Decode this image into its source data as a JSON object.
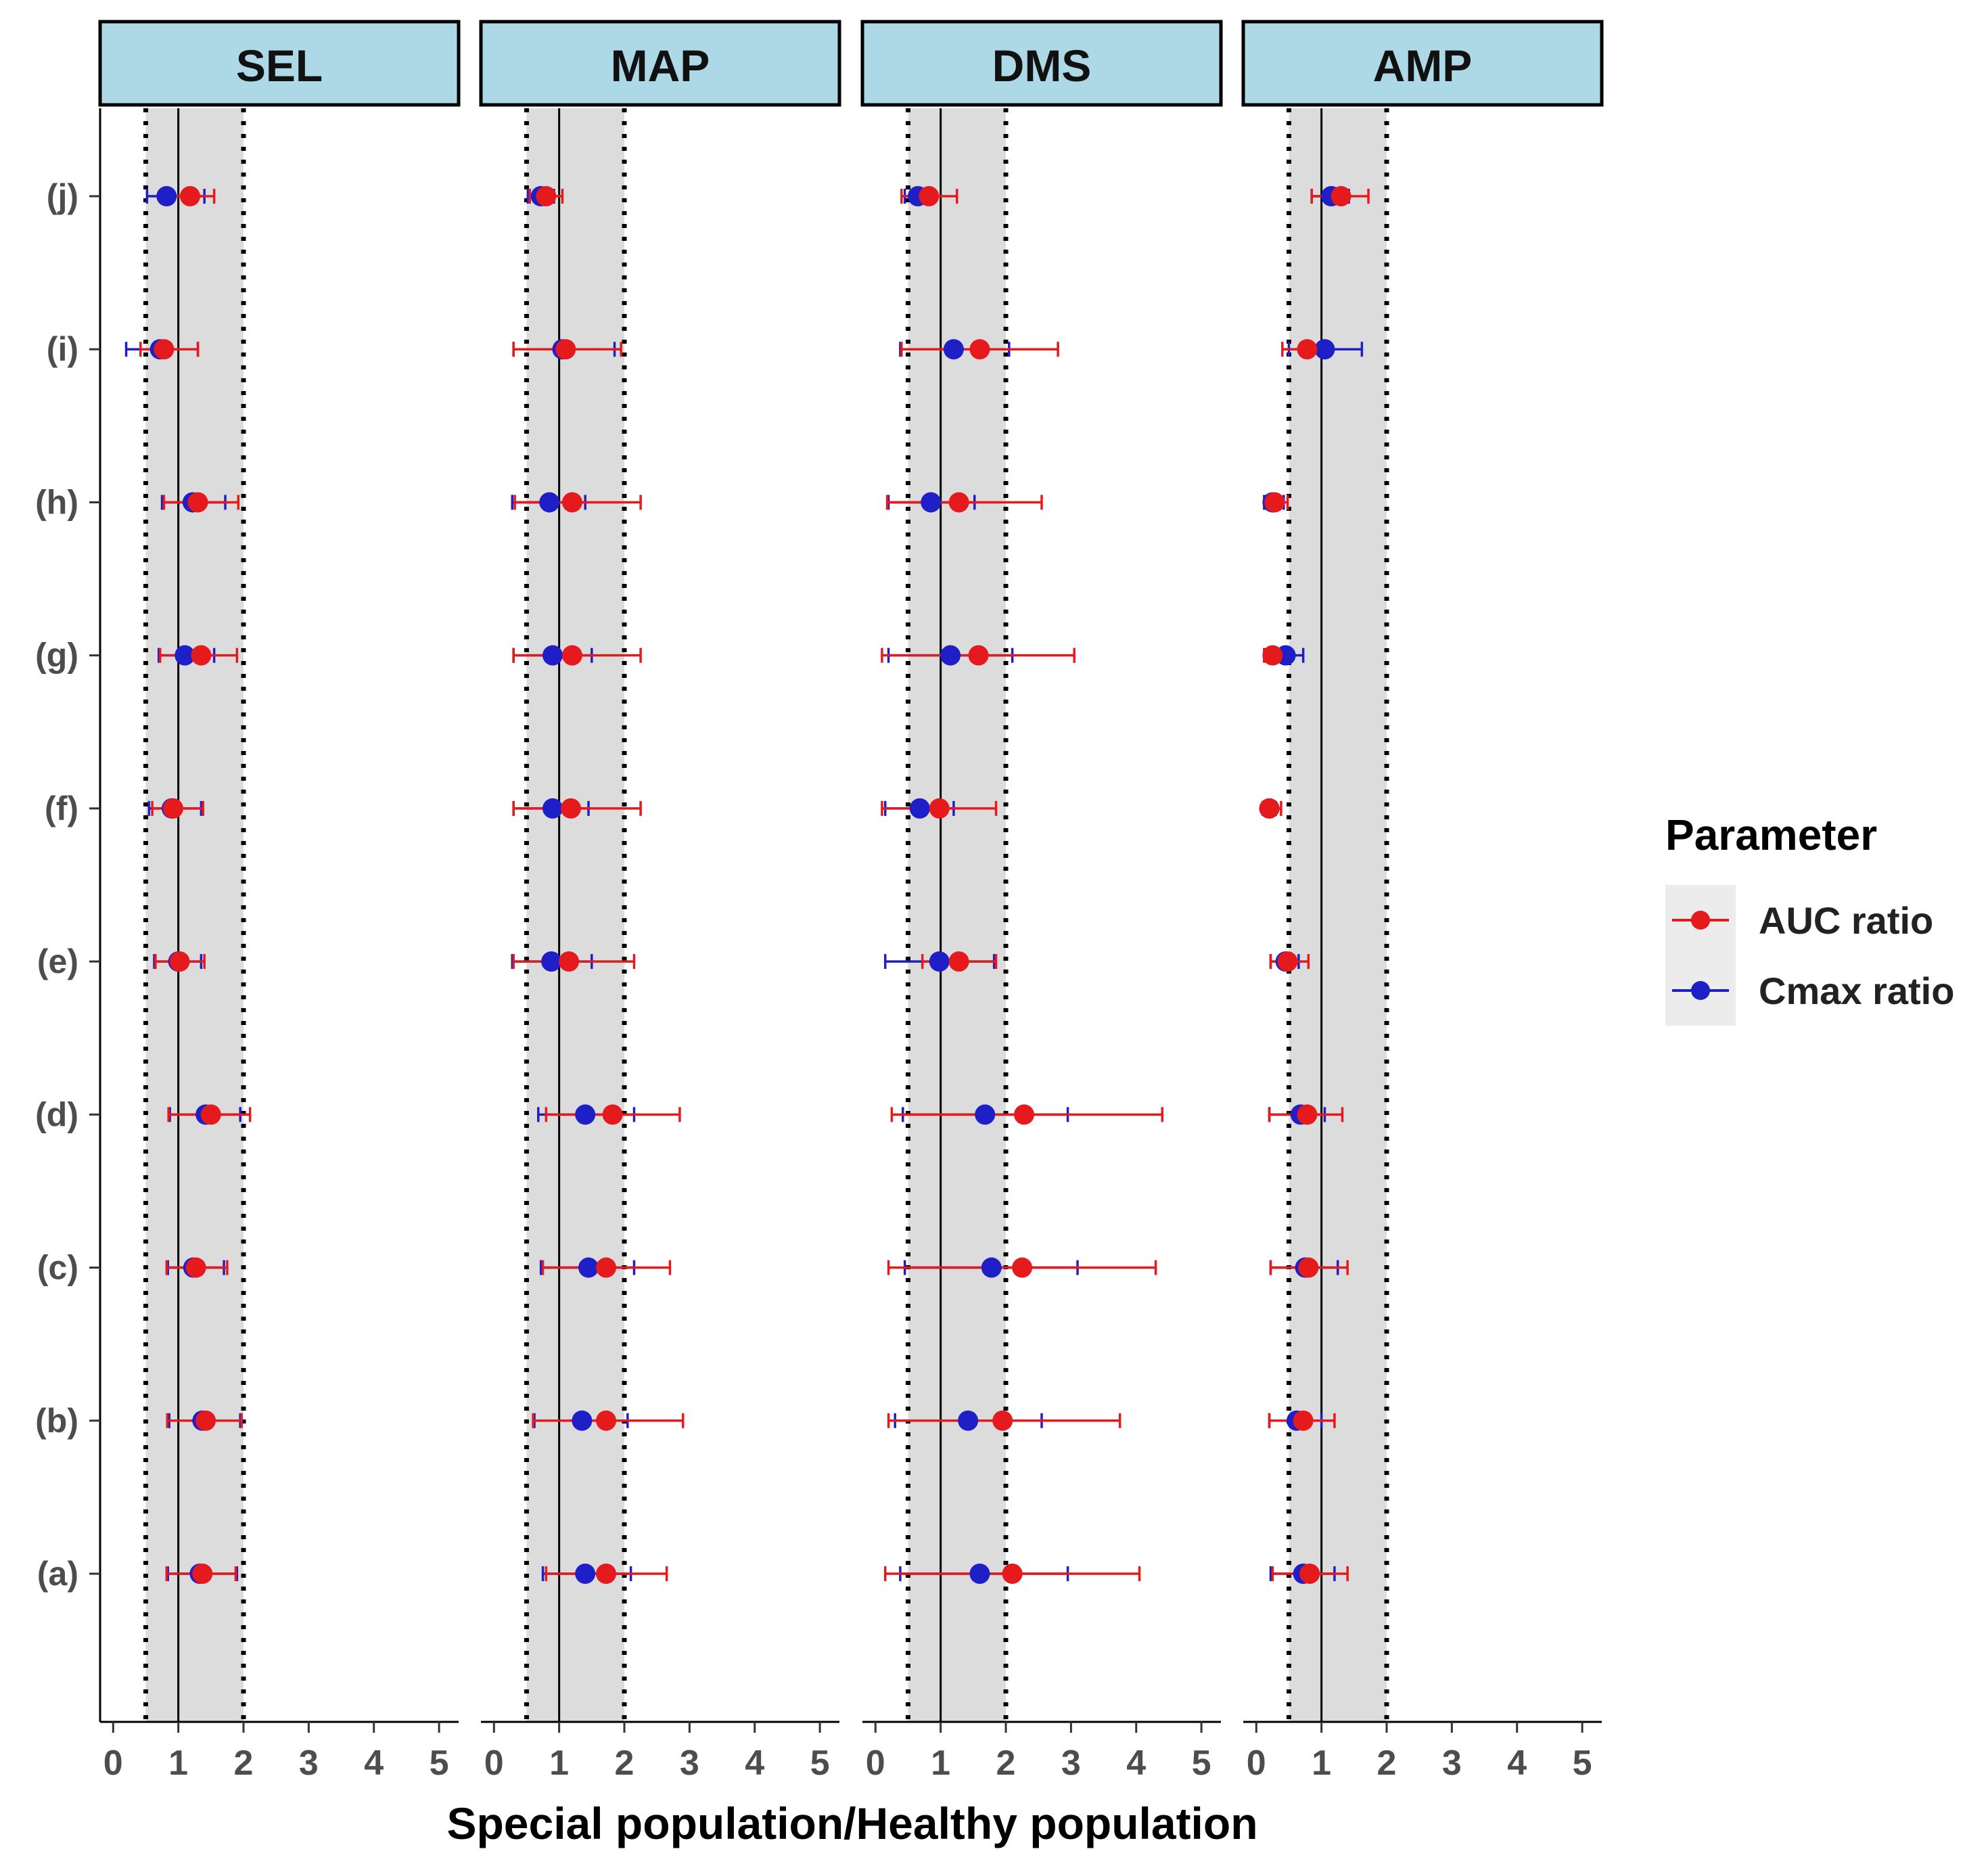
{
  "chart_data": {
    "type": "forest",
    "xlabel": "Special population/Healthy population",
    "ylabel": "",
    "xlim": [
      -0.2,
      5.3
    ],
    "xticks": [
      0,
      1,
      2,
      3,
      4,
      5
    ],
    "xtick_labels": [
      "0",
      "1",
      "2",
      "3",
      "4",
      "5"
    ],
    "reference_line": 1,
    "limit_lines": [
      0.5,
      2
    ],
    "shaded_range": [
      0.5,
      2
    ],
    "categories": [
      "(a)",
      "(b)",
      "(c)",
      "(d)",
      "(e)",
      "(f)",
      "(g)",
      "(h)",
      "(i)",
      "(j)"
    ],
    "legend": {
      "title": "Parameter",
      "entries": [
        {
          "name": "AUC ratio",
          "color": "#e41a1c"
        },
        {
          "name": "Cmax ratio",
          "color": "#1f1fc8"
        }
      ]
    },
    "panels": [
      {
        "title": "SEL",
        "series": [
          {
            "name": "AUC ratio",
            "color": "#e41a1c",
            "points": [
              [
                1.37,
                0.82,
                1.88
              ],
              [
                1.42,
                0.83,
                1.97
              ],
              [
                1.27,
                0.82,
                1.75
              ],
              [
                1.5,
                0.85,
                2.1
              ],
              [
                1.02,
                0.65,
                1.4
              ],
              [
                0.92,
                0.6,
                1.38
              ],
              [
                1.35,
                0.72,
                1.9
              ],
              [
                1.3,
                0.78,
                1.92
              ],
              [
                0.78,
                0.42,
                1.3
              ],
              [
                1.18,
                0.75,
                1.55
              ]
            ]
          },
          {
            "name": "Cmax ratio",
            "color": "#1f1fc8",
            "points": [
              [
                1.33,
                0.84,
                1.9
              ],
              [
                1.37,
                0.86,
                1.95
              ],
              [
                1.23,
                0.84,
                1.7
              ],
              [
                1.42,
                0.87,
                1.95
              ],
              [
                1.0,
                0.63,
                1.35
              ],
              [
                0.9,
                0.55,
                1.35
              ],
              [
                1.1,
                0.7,
                1.55
              ],
              [
                1.22,
                0.75,
                1.72
              ],
              [
                0.72,
                0.2,
                1.3
              ],
              [
                0.82,
                0.52,
                1.4
              ]
            ]
          }
        ]
      },
      {
        "title": "MAP",
        "series": [
          {
            "name": "AUC ratio",
            "color": "#e41a1c",
            "points": [
              [
                1.72,
                0.8,
                2.65
              ],
              [
                1.72,
                0.6,
                2.9
              ],
              [
                1.72,
                0.75,
                2.7
              ],
              [
                1.82,
                0.8,
                2.85
              ],
              [
                1.15,
                0.3,
                2.15
              ],
              [
                1.18,
                0.3,
                2.25
              ],
              [
                1.2,
                0.3,
                2.25
              ],
              [
                1.2,
                0.32,
                2.25
              ],
              [
                1.1,
                0.3,
                1.95
              ],
              [
                0.8,
                0.55,
                1.05
              ]
            ]
          },
          {
            "name": "Cmax ratio",
            "color": "#1f1fc8",
            "points": [
              [
                1.4,
                0.75,
                2.1
              ],
              [
                1.35,
                0.62,
                2.05
              ],
              [
                1.45,
                0.72,
                2.15
              ],
              [
                1.4,
                0.68,
                2.15
              ],
              [
                0.88,
                0.28,
                1.5
              ],
              [
                0.9,
                0.3,
                1.45
              ],
              [
                0.9,
                0.3,
                1.5
              ],
              [
                0.85,
                0.28,
                1.4
              ],
              [
                1.05,
                0.3,
                1.85
              ],
              [
                0.72,
                0.52,
                0.92
              ]
            ]
          }
        ]
      },
      {
        "title": "DMS",
        "series": [
          {
            "name": "AUC ratio",
            "color": "#e41a1c",
            "points": [
              [
                2.1,
                0.15,
                4.05
              ],
              [
                1.95,
                0.2,
                3.75
              ],
              [
                2.25,
                0.2,
                4.3
              ],
              [
                2.28,
                0.25,
                4.4
              ],
              [
                1.28,
                0.72,
                1.85
              ],
              [
                0.98,
                0.1,
                1.85
              ],
              [
                1.58,
                0.1,
                3.05
              ],
              [
                1.28,
                0.18,
                2.55
              ],
              [
                1.6,
                0.4,
                2.8
              ],
              [
                0.82,
                0.4,
                1.25
              ]
            ]
          },
          {
            "name": "Cmax ratio",
            "color": "#1f1fc8",
            "points": [
              [
                1.6,
                0.38,
                2.95
              ],
              [
                1.42,
                0.3,
                2.55
              ],
              [
                1.78,
                0.45,
                3.1
              ],
              [
                1.68,
                0.42,
                2.95
              ],
              [
                0.98,
                0.15,
                1.82
              ],
              [
                0.68,
                0.15,
                1.2
              ],
              [
                1.15,
                0.2,
                2.1
              ],
              [
                0.85,
                0.2,
                1.52
              ],
              [
                1.2,
                0.38,
                2.05
              ],
              [
                0.65,
                0.45,
                0.85
              ]
            ]
          }
        ]
      },
      {
        "title": "AMP",
        "series": [
          {
            "name": "AUC ratio",
            "color": "#e41a1c",
            "points": [
              [
                0.82,
                0.25,
                1.4
              ],
              [
                0.72,
                0.2,
                1.2
              ],
              [
                0.8,
                0.22,
                1.4
              ],
              [
                0.78,
                0.2,
                1.32
              ],
              [
                0.48,
                0.22,
                0.8
              ],
              [
                0.2,
                0.1,
                0.38
              ],
              [
                0.25,
                0.12,
                0.45
              ],
              [
                0.28,
                0.15,
                0.48
              ],
              [
                0.78,
                0.4,
                1.12
              ],
              [
                1.3,
                0.85,
                1.72
              ]
            ]
          },
          {
            "name": "Cmax ratio",
            "color": "#1f1fc8",
            "points": [
              [
                0.72,
                0.22,
                1.2
              ],
              [
                0.62,
                0.2,
                1.0
              ],
              [
                0.75,
                0.22,
                1.25
              ],
              [
                0.68,
                0.2,
                1.05
              ],
              [
                0.45,
                0.22,
                0.65
              ],
              [
                0.2,
                0.1,
                0.3
              ],
              [
                0.45,
                0.2,
                0.72
              ],
              [
                0.25,
                0.12,
                0.42
              ],
              [
                1.05,
                0.5,
                1.62
              ],
              [
                1.15,
                0.85,
                1.42
              ]
            ]
          }
        ]
      }
    ]
  }
}
